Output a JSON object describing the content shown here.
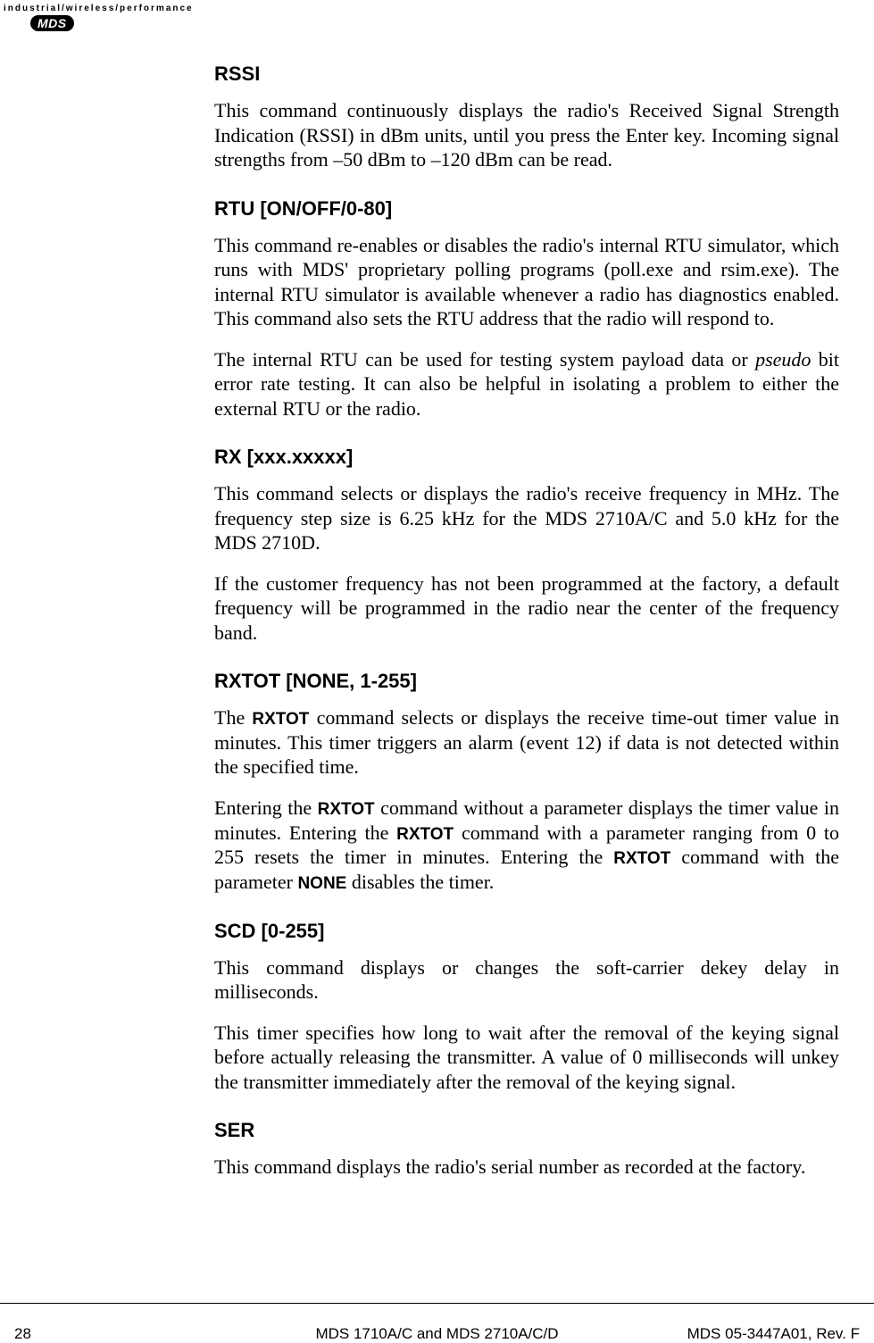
{
  "header": {
    "tagline": "industrial/wireless/performance",
    "logo_text": "MDS"
  },
  "sections": {
    "rssi": {
      "title": "RSSI",
      "p1": "This command continuously displays the radio's Received Signal Strength Indication (RSSI) in dBm units, until you press the Enter key. Incoming signal strengths from –50 dBm to –120 dBm can be read."
    },
    "rtu": {
      "title": "RTU [ON/OFF/0-80]",
      "p1": "This command re-enables or disables the radio's internal RTU simulator, which runs with MDS' proprietary polling programs (poll.exe and rsim.exe). The internal RTU simulator is available whenever a radio has diagnostics enabled. This command also sets the RTU address that the radio will respond to.",
      "p2_a": "The internal RTU can be used for testing system payload data or ",
      "p2_i": "pseudo",
      "p2_b": " bit error rate testing. It can also be helpful in isolating a problem to either the external RTU or the radio."
    },
    "rx": {
      "title": "RX [xxx.xxxxx]",
      "p1": "This command selects or displays the radio's receive frequency in MHz. The frequency step size is 6.25 kHz for the MDS 2710A/C and 5.0 kHz for the MDS 2710D.",
      "p2": "If the customer frequency has not been programmed at the factory, a default frequency will be programmed in the radio near the center of the frequency band."
    },
    "rxtot": {
      "title": "RXTOT [NONE, 1-255]",
      "p1_a": "The ",
      "p1_cmd1": "RXTOT",
      "p1_b": " command selects or displays the receive time-out timer value in minutes. This timer triggers an alarm (event 12) if data is not detected within the specified time.",
      "p2_a": "Entering the ",
      "p2_cmd1": "RXTOT",
      "p2_b": " command without a parameter displays the timer value in minutes. Entering the ",
      "p2_cmd2": "RXTOT",
      "p2_c": " command with a parameter ranging from 0 to 255 resets the timer in minutes. Entering the ",
      "p2_cmd3": "RXTOT",
      "p2_d": " command with the parameter ",
      "p2_cmd4": "NONE",
      "p2_e": " disables the timer."
    },
    "scd": {
      "title": "SCD [0-255]",
      "p1": "This command displays or changes the soft-carrier dekey delay in milliseconds.",
      "p2": "This timer specifies how long to wait after the removal of the keying signal before actually releasing the transmitter. A value of 0 milliseconds will unkey the transmitter immediately after the removal of the keying signal."
    },
    "ser": {
      "title": "SER",
      "p1": "This command displays the radio's serial number as recorded at the factory."
    }
  },
  "footer": {
    "page_number": "28",
    "center": "MDS 1710A/C and MDS 2710A/C/D",
    "right": "MDS 05-3447A01, Rev. F"
  }
}
